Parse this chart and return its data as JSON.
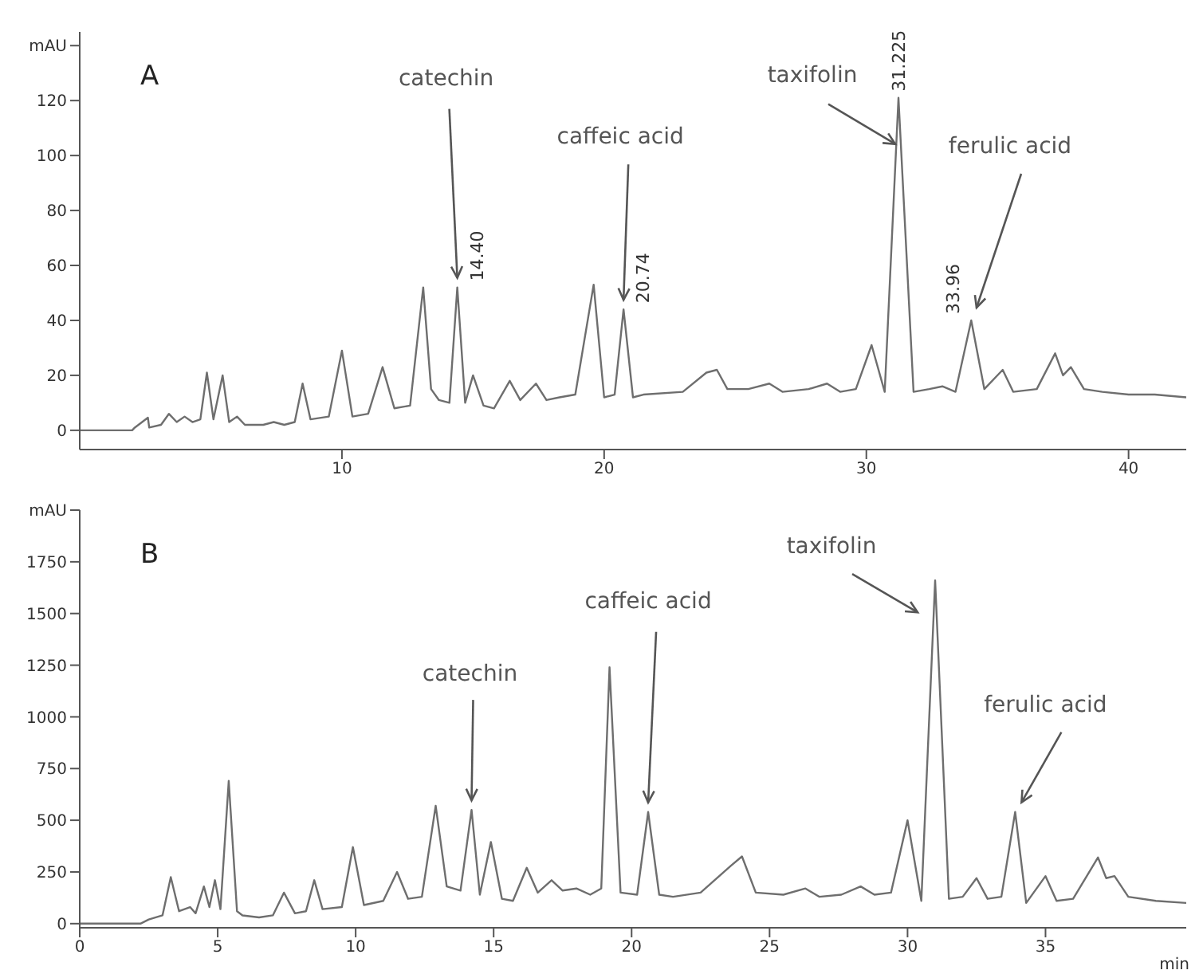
{
  "chart_data": [
    {
      "type": "line",
      "title": "A",
      "x": [
        0,
        2.0,
        2.1,
        2.6,
        2.65,
        3.1,
        3.4,
        3.7,
        4.0,
        4.3,
        4.6,
        4.85,
        5.1,
        5.45,
        5.7,
        6.0,
        6.3,
        7.0,
        7.4,
        7.8,
        8.2,
        8.5,
        8.8,
        9.5,
        10.0,
        10.4,
        11.0,
        11.55,
        12.0,
        12.6,
        13.1,
        13.4,
        13.7,
        14.1,
        14.4,
        14.7,
        15.0,
        15.4,
        15.8,
        16.4,
        16.8,
        17.4,
        17.8,
        18.3,
        18.9,
        19.6,
        20.0,
        20.4,
        20.74,
        21.1,
        21.5,
        23,
        23.9,
        24.3,
        24.7,
        25.5,
        26.3,
        26.8,
        27.8,
        28.5,
        29.0,
        29.6,
        30.2,
        30.7,
        31.225,
        31.8,
        32.4,
        32.9,
        33.4,
        34.0,
        34.5,
        35.2,
        35.6,
        36.5,
        37.2,
        37.5,
        37.8,
        38.3,
        39,
        40,
        41,
        42.2
      ],
      "series": [
        {
          "color": "#6e6e6e",
          "values": [
            0,
            0,
            1,
            4.6,
            1,
            2,
            6,
            3,
            5,
            3,
            4,
            21,
            4,
            20,
            3,
            5,
            2,
            2,
            3,
            2,
            3,
            17,
            4,
            5,
            29,
            5,
            6,
            23,
            8,
            9,
            52,
            15,
            11,
            10,
            52,
            10,
            20,
            9,
            8,
            18,
            11,
            17,
            11,
            12,
            13,
            53,
            12,
            13,
            44,
            12,
            13,
            14,
            21,
            22,
            15,
            15,
            17,
            14,
            15,
            17,
            14,
            15,
            31,
            14,
            121,
            14,
            15,
            16,
            14,
            40,
            15,
            22,
            14,
            15,
            28,
            20,
            23,
            15,
            14,
            13,
            13,
            12
          ]
        }
      ],
      "xlim": [
        0,
        42.2
      ],
      "xticks": [
        10,
        20,
        30,
        40
      ],
      "ylim": [
        -7,
        145
      ],
      "yticks": [
        0,
        20,
        40,
        60,
        80,
        100,
        120,
        {
          "value": 140,
          "label": "mAU"
        }
      ],
      "annotations": [
        {
          "text": "catechin",
          "x": 14.4,
          "y": 52
        },
        {
          "text": "caffeic acid",
          "x": 20.74,
          "y": 44
        },
        {
          "text": "taxifolin",
          "x": 31.225,
          "y": 121
        },
        {
          "text": "ferulic acid",
          "x": 33.96,
          "y": 40
        },
        {
          "text": "14.40",
          "x": 14.4,
          "y": 52
        },
        {
          "text": "20.74",
          "x": 20.74,
          "y": 44
        },
        {
          "text": "31.225",
          "x": 31.225,
          "y": 121
        },
        {
          "text": "33.96",
          "x": 33.96,
          "y": 40
        }
      ]
    },
    {
      "type": "line",
      "title": "B",
      "xlabel": "min",
      "x": [
        0,
        2.2,
        2.5,
        3.0,
        3.3,
        3.6,
        4.0,
        4.2,
        4.5,
        4.7,
        4.9,
        5.1,
        5.4,
        5.7,
        5.9,
        6.5,
        7.0,
        7.4,
        7.8,
        8.2,
        8.5,
        8.8,
        9.5,
        9.9,
        10.3,
        11.0,
        11.5,
        11.9,
        12.4,
        12.9,
        13.3,
        13.8,
        14.2,
        14.5,
        14.9,
        15.3,
        15.7,
        16.2,
        16.6,
        17.1,
        17.5,
        18.0,
        18.5,
        18.9,
        19.2,
        19.6,
        20.2,
        20.6,
        21.0,
        21.5,
        22.5,
        23.6,
        24.0,
        24.5,
        25.5,
        26.3,
        26.8,
        27.6,
        28.3,
        28.8,
        29.4,
        30.0,
        30.5,
        31.0,
        31.5,
        32.0,
        32.5,
        32.9,
        33.4,
        33.9,
        34.3,
        35.0,
        35.4,
        36.0,
        36.9,
        37.2,
        37.5,
        38.0,
        39.0,
        40.1
      ],
      "series": [
        {
          "color": "#6e6e6e",
          "values": [
            0,
            0,
            20,
            40,
            225,
            60,
            80,
            50,
            180,
            80,
            210,
            70,
            690,
            60,
            40,
            30,
            40,
            150,
            50,
            60,
            210,
            70,
            80,
            370,
            90,
            110,
            250,
            120,
            130,
            570,
            180,
            160,
            550,
            140,
            395,
            120,
            110,
            270,
            150,
            210,
            160,
            170,
            140,
            170,
            1240,
            150,
            140,
            540,
            140,
            130,
            150,
            280,
            325,
            150,
            140,
            170,
            130,
            140,
            180,
            140,
            150,
            500,
            110,
            1660,
            120,
            130,
            220,
            120,
            130,
            540,
            100,
            230,
            110,
            120,
            320,
            220,
            230,
            130,
            110,
            100
          ]
        }
      ],
      "xlim": [
        0,
        40.1
      ],
      "xticks": [
        0,
        5,
        10,
        15,
        20,
        25,
        30,
        35
      ],
      "ylim": [
        -20,
        2000
      ],
      "yticks": [
        0,
        250,
        500,
        750,
        1000,
        1250,
        1500,
        1750,
        {
          "value": 2000,
          "label": "mAU"
        }
      ],
      "annotations": [
        {
          "text": "catechin",
          "x": 14.2,
          "y": 550
        },
        {
          "text": "caffeic acid",
          "x": 20.6,
          "y": 540
        },
        {
          "text": "taxifolin",
          "x": 31.0,
          "y": 1660
        },
        {
          "text": "ferulic acid",
          "x": 33.9,
          "y": 540
        }
      ]
    }
  ]
}
